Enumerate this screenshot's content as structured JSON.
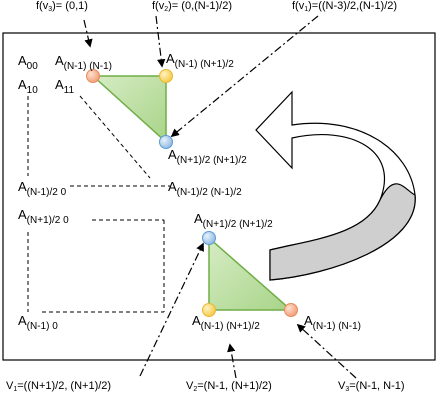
{
  "top_annotations": {
    "fv3": {
      "pre": "f(v",
      "sub": "3",
      "post": ")= (0,1)"
    },
    "fv2": {
      "pre": "f(v",
      "sub": "2",
      "post": ")= (0,(N-1)/2)"
    },
    "fv1": {
      "pre": "f(v",
      "sub": "1",
      "post": ")=((N-3)/2,(N-1)/2)"
    }
  },
  "matrix_labels": {
    "a00": {
      "base": "A",
      "sub": "00"
    },
    "a0n1": {
      "base": "A",
      "sub": "(N-1) (N-1)"
    },
    "a0n1half": {
      "base": "A",
      "sub": "(N-1) (N+1)/2"
    },
    "a10": {
      "base": "A",
      "sub": "10"
    },
    "a11": {
      "base": "A",
      "sub": "11"
    },
    "a_n1p1half": {
      "base": "A",
      "sub": "(N+1)/2 (N+1)/2"
    },
    "a_n1m_0": {
      "base": "A",
      "sub": "(N-1)/2 0"
    },
    "a_n1m_n1m": {
      "base": "A",
      "sub": "(N-1)/2 (N-1)/2"
    },
    "a_n1p_0": {
      "base": "A",
      "sub": "(N+1)/2 0"
    },
    "a_bottom_top": {
      "base": "A",
      "sub": "(N+1)/2 (N+1)/2"
    },
    "a_n10": {
      "base": "A",
      "sub": "(N-1) 0"
    },
    "a_bl": {
      "base": "A",
      "sub": "(N-1) (N+1)/2"
    },
    "a_br": {
      "base": "A",
      "sub": "(N-1) (N-1)"
    }
  },
  "bottom_annotations": {
    "v1": {
      "pre": "V",
      "sub": "1",
      "post": "=((N+1)/2, (N+1)/2)"
    },
    "v2": {
      "pre": "V",
      "sub": "2",
      "post": "=(N-1, (N+1)/2)"
    },
    "v3": {
      "pre": "V",
      "sub": "3",
      "post": "=(N-1, N-1)"
    }
  },
  "colors": {
    "triangle_fill": "#b4dc96",
    "triangle_stroke": "#70ad47",
    "node_orange": "#f4a582",
    "node_yellow": "#ffd966",
    "node_blue": "#9dc3e6",
    "arrow_fill": "#d9d9d9"
  }
}
